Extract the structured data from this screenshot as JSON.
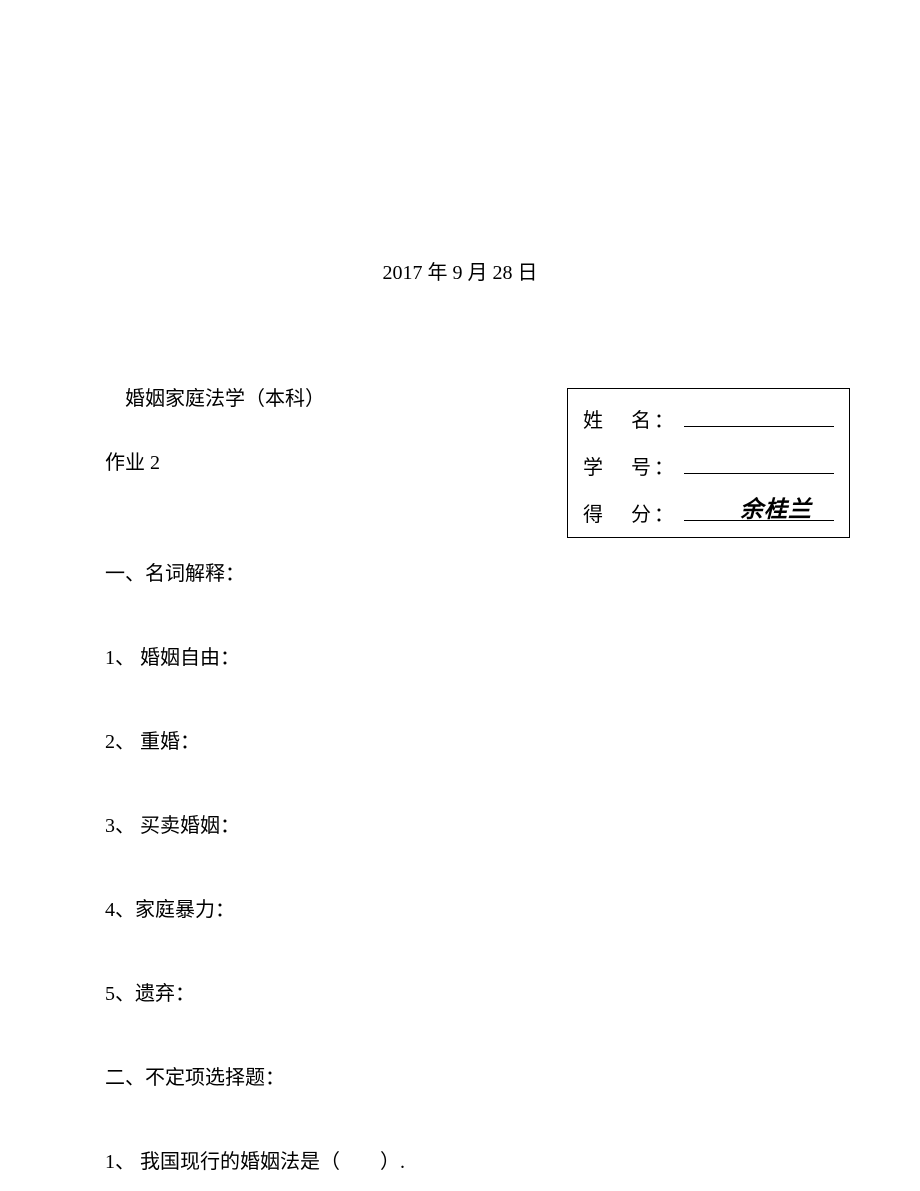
{
  "date": "2017 年 9 月 28 日",
  "course_title": "婚姻家庭法学（本科）",
  "assignment": "作业 2",
  "section1": "一、名词解释：",
  "q1": "1、 婚姻自由：",
  "q2": "2、 重婚：",
  "q3": "3、 买卖婚姻：",
  "q4": "4、家庭暴力：",
  "q5": "5、遗弃：",
  "section2": "二、不定项选择题：",
  "mcq1": "1、 我国现行的婚姻法是（　　）.",
  "info_box": {
    "name_label1": "姓",
    "name_label2": "名",
    "id_label1": "学",
    "id_label2": "号",
    "score_label1": "得",
    "score_label2": "分",
    "colon": "：",
    "handwritten_name": "余桂兰"
  }
}
